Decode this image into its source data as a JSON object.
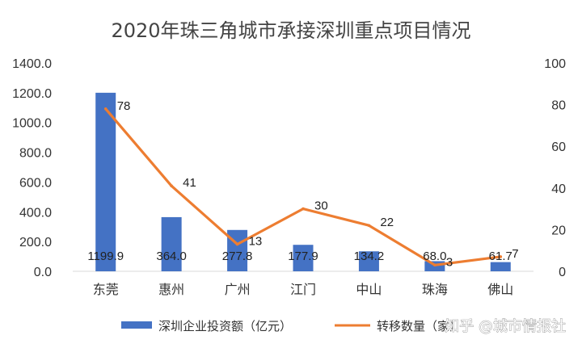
{
  "chart_data": {
    "type": "bar",
    "title": "2020年珠三角城市承接深圳重点项目情况",
    "categories": [
      "东莞",
      "惠州",
      "广州",
      "江门",
      "中山",
      "珠海",
      "佛山"
    ],
    "y_left": {
      "ylim": [
        0,
        1400
      ],
      "ticks": [
        "0.0",
        "200.0",
        "400.0",
        "600.0",
        "800.0",
        "1000.0",
        "1200.0",
        "1400.0"
      ]
    },
    "y_right": {
      "ylim": [
        0,
        100
      ],
      "ticks": [
        "0",
        "20",
        "40",
        "60",
        "80",
        "100"
      ]
    },
    "series": [
      {
        "name": "深圳企业投资额（亿元）",
        "type": "bar",
        "axis": "left",
        "color": "#4472C4",
        "values": [
          1199.9,
          364.0,
          277.8,
          177.9,
          134.2,
          68.0,
          61.7
        ],
        "labels": [
          "1199.9",
          "364.0",
          "277.8",
          "177.9",
          "134.2",
          "68.0",
          "61.7"
        ]
      },
      {
        "name": "转移数量（家）",
        "type": "line",
        "axis": "right",
        "color": "#ED7D31",
        "values": [
          78,
          41,
          13,
          30,
          22,
          3,
          7
        ],
        "labels": [
          "78",
          "41",
          "13",
          "30",
          "22",
          "3",
          "7"
        ]
      }
    ],
    "grid": false,
    "legend": "bottom"
  },
  "watermark": "知乎 @城市情报社"
}
